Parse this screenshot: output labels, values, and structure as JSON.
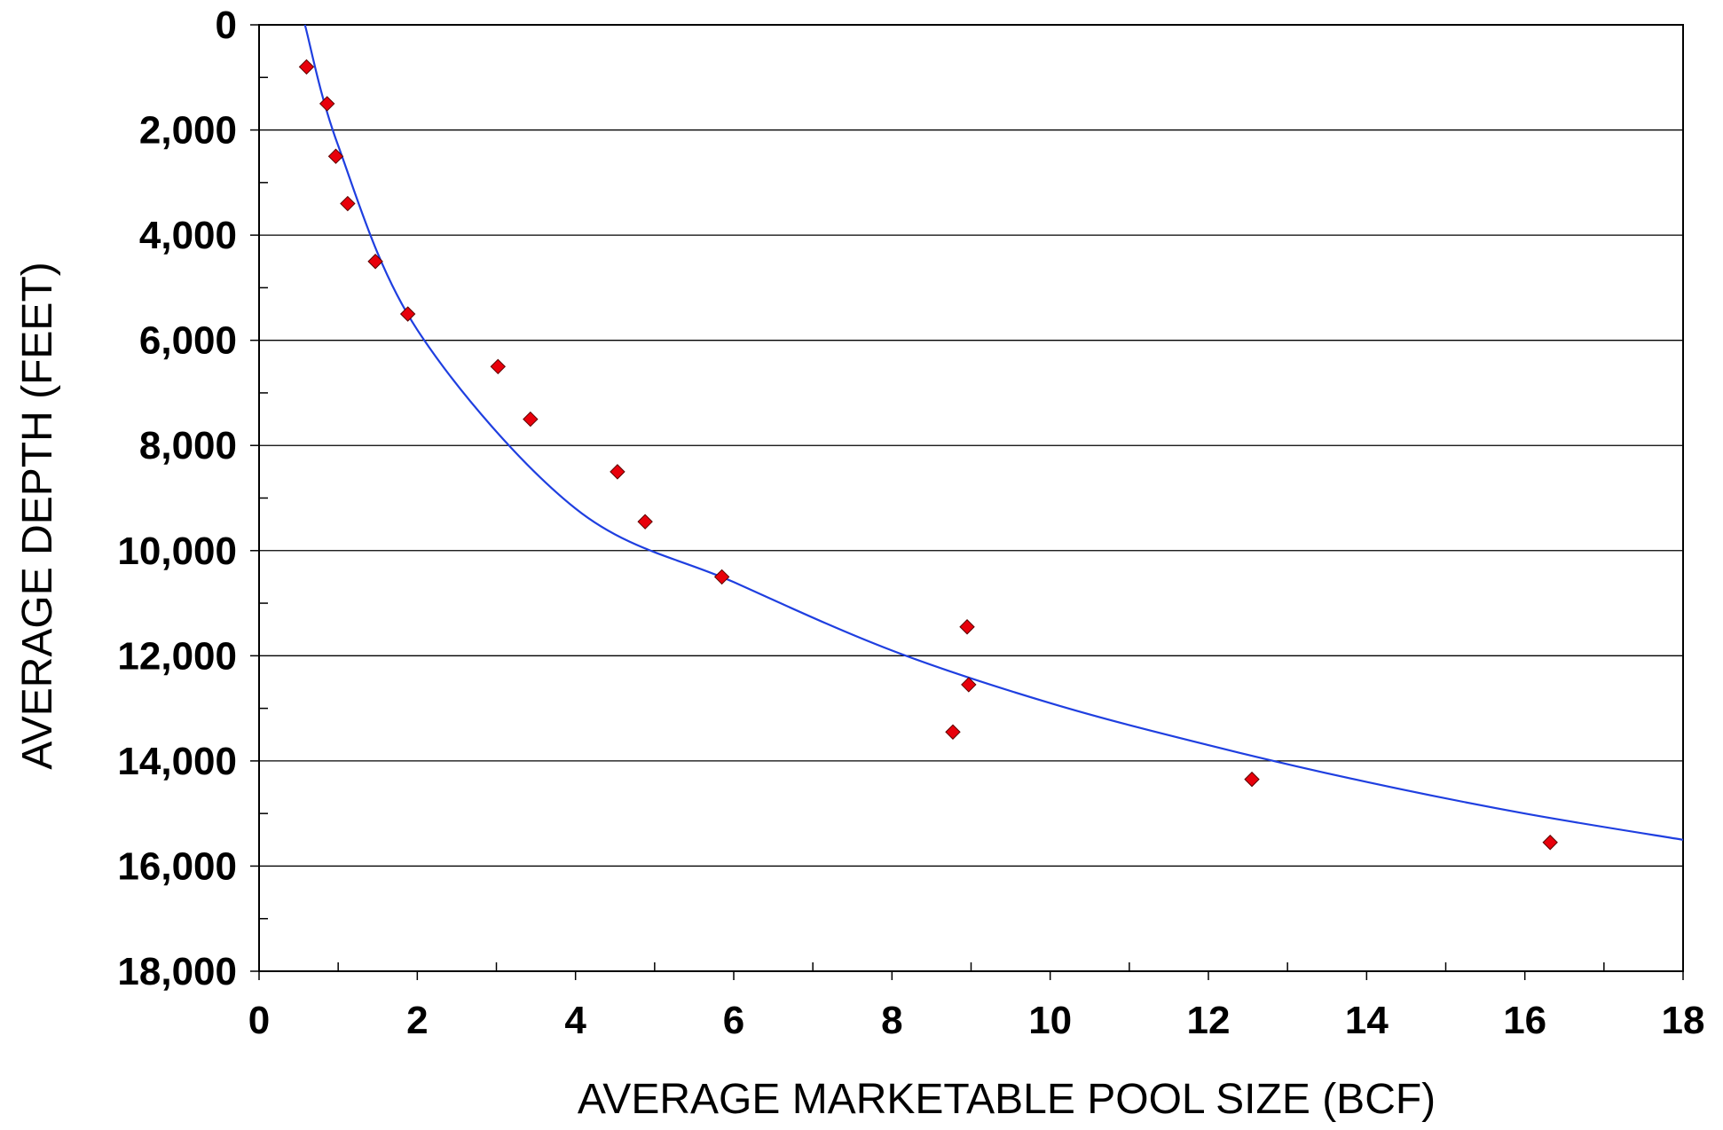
{
  "chart_data": {
    "type": "scatter",
    "title": "",
    "xlabel": "AVERAGE MARKETABLE POOL SIZE (BCF)",
    "ylabel": "AVERAGE DEPTH (FEET)",
    "xlim": [
      0,
      18
    ],
    "ylim": [
      0,
      18000
    ],
    "y_inverted": true,
    "x_ticks": [
      "0",
      "2",
      "4",
      "6",
      "8",
      "10",
      "12",
      "14",
      "16",
      "18"
    ],
    "y_ticks": [
      "0",
      "2,000",
      "4,000",
      "6,000",
      "8,000",
      "10,000",
      "12,000",
      "14,000",
      "16,000",
      "18,000"
    ],
    "grid": "horizontal",
    "series": [
      {
        "marker": "diamond",
        "color": "#e8000b",
        "points": [
          {
            "x": 0.6,
            "y": 800
          },
          {
            "x": 0.86,
            "y": 1500
          },
          {
            "x": 0.97,
            "y": 2500
          },
          {
            "x": 1.12,
            "y": 3400
          },
          {
            "x": 1.47,
            "y": 4500
          },
          {
            "x": 1.88,
            "y": 5500
          },
          {
            "x": 3.02,
            "y": 6500
          },
          {
            "x": 3.43,
            "y": 7500
          },
          {
            "x": 4.53,
            "y": 8500
          },
          {
            "x": 4.88,
            "y": 9450
          },
          {
            "x": 5.85,
            "y": 10500
          },
          {
            "x": 8.95,
            "y": 11450
          },
          {
            "x": 8.97,
            "y": 12550
          },
          {
            "x": 8.77,
            "y": 13450
          },
          {
            "x": 12.55,
            "y": 14350
          },
          {
            "x": 16.32,
            "y": 15550
          }
        ]
      },
      {
        "type": "line",
        "color": "#1f3fe0",
        "curve": [
          {
            "x": 0.58,
            "y": 0
          },
          {
            "x": 1.0,
            "y": 2300
          },
          {
            "x": 2.0,
            "y": 5800
          },
          {
            "x": 4.0,
            "y": 9200
          },
          {
            "x": 6.0,
            "y": 10600
          },
          {
            "x": 8.0,
            "y": 11900
          },
          {
            "x": 10.0,
            "y": 12900
          },
          {
            "x": 12.0,
            "y": 13700
          },
          {
            "x": 14.0,
            "y": 14400
          },
          {
            "x": 16.0,
            "y": 15000
          },
          {
            "x": 18.0,
            "y": 15500
          }
        ]
      }
    ]
  }
}
